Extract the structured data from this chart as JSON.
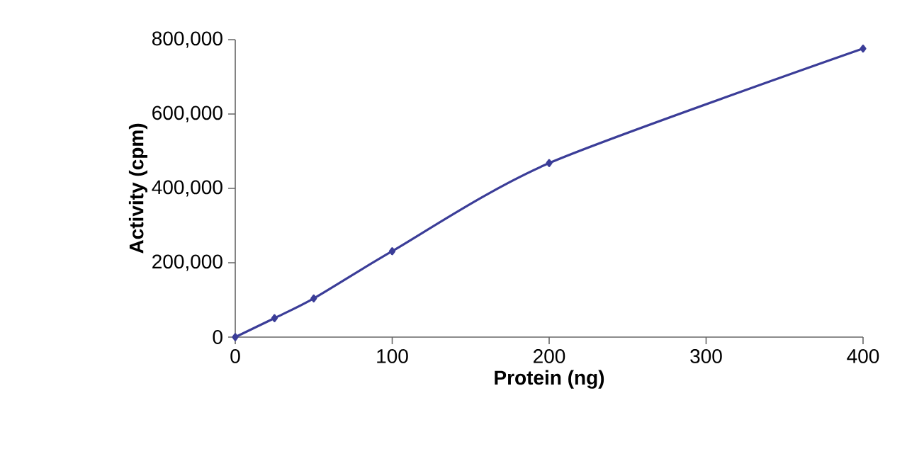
{
  "chart_data": {
    "type": "line",
    "xlabel": "Protein (ng)",
    "ylabel": "Activity (cpm)",
    "x": [
      0,
      25,
      50,
      100,
      200,
      400
    ],
    "series": [
      {
        "color": "#3b3d98",
        "values": [
          0,
          51000,
          104000,
          231000,
          468000,
          776000
        ]
      }
    ],
    "xlim": [
      0,
      400
    ],
    "ylim": [
      0,
      800000
    ],
    "xticks": [
      0,
      100,
      200,
      300,
      400
    ],
    "yticks": [
      0,
      {
        "value": 200000,
        "label": "200,000"
      },
      {
        "value": 400000,
        "label": "400,000"
      },
      {
        "value": 600000,
        "label": "600,000"
      },
      {
        "value": 800000,
        "label": "800,000"
      }
    ],
    "grid": false,
    "marker": "diamond",
    "line_style": "solid"
  }
}
